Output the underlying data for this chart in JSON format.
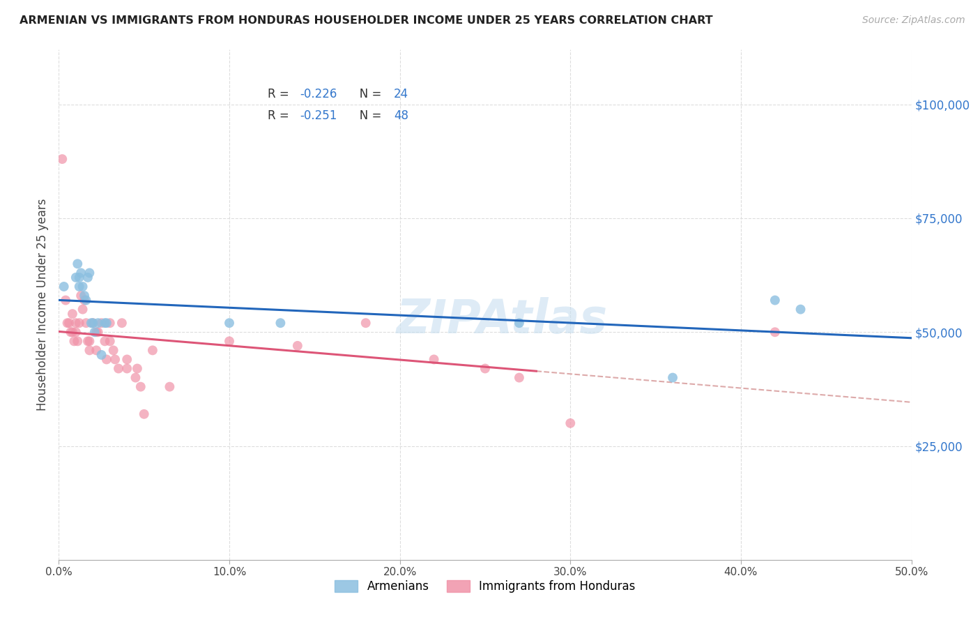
{
  "title": "ARMENIAN VS IMMIGRANTS FROM HONDURAS HOUSEHOLDER INCOME UNDER 25 YEARS CORRELATION CHART",
  "source": "Source: ZipAtlas.com",
  "ylabel": "Householder Income Under 25 years",
  "ytick_values": [
    25000,
    50000,
    75000,
    100000
  ],
  "xtick_values": [
    0.0,
    0.1,
    0.2,
    0.3,
    0.4,
    0.5
  ],
  "xtick_labels": [
    "0.0%",
    "10.0%",
    "20.0%",
    "30.0%",
    "40.0%",
    "50.0%"
  ],
  "xlim": [
    0.0,
    0.5
  ],
  "ylim": [
    0,
    112000
  ],
  "armenian_color": "#8bbfe0",
  "honduras_color": "#f093a8",
  "regression_armenian_color": "#2266bb",
  "regression_honduras_color": "#dd5577",
  "regression_dashed_color": "#ddaaaa",
  "watermark": "ZIPAtlas",
  "watermark_color": "#c8dff0",
  "legend_label_armenians": "Armenians",
  "legend_label_honduras": "Immigrants from Honduras",
  "armenian_R": "-0.226",
  "armenian_N": "24",
  "honduras_R": "-0.251",
  "honduras_N": "48",
  "armenian_x": [
    0.003,
    0.01,
    0.011,
    0.012,
    0.012,
    0.013,
    0.014,
    0.015,
    0.016,
    0.017,
    0.018,
    0.019,
    0.02,
    0.021,
    0.023,
    0.025,
    0.027,
    0.028,
    0.1,
    0.13,
    0.27,
    0.36,
    0.42,
    0.435
  ],
  "armenian_y": [
    60000,
    62000,
    65000,
    62000,
    60000,
    63000,
    60000,
    58000,
    57000,
    62000,
    63000,
    52000,
    52000,
    50000,
    52000,
    45000,
    52000,
    52000,
    52000,
    52000,
    52000,
    40000,
    57000,
    55000
  ],
  "honduras_x": [
    0.002,
    0.004,
    0.005,
    0.006,
    0.007,
    0.008,
    0.008,
    0.009,
    0.01,
    0.01,
    0.011,
    0.012,
    0.013,
    0.014,
    0.015,
    0.016,
    0.017,
    0.018,
    0.018,
    0.02,
    0.022,
    0.022,
    0.023,
    0.025,
    0.027,
    0.028,
    0.03,
    0.03,
    0.032,
    0.033,
    0.035,
    0.037,
    0.04,
    0.04,
    0.045,
    0.046,
    0.048,
    0.05,
    0.055,
    0.065,
    0.1,
    0.14,
    0.18,
    0.22,
    0.25,
    0.27,
    0.3,
    0.42
  ],
  "honduras_y": [
    88000,
    57000,
    52000,
    52000,
    50000,
    54000,
    50000,
    48000,
    52000,
    50000,
    48000,
    52000,
    58000,
    55000,
    57000,
    52000,
    48000,
    46000,
    48000,
    52000,
    50000,
    46000,
    50000,
    52000,
    48000,
    44000,
    48000,
    52000,
    46000,
    44000,
    42000,
    52000,
    44000,
    42000,
    40000,
    42000,
    38000,
    32000,
    46000,
    38000,
    48000,
    47000,
    52000,
    44000,
    42000,
    40000,
    30000,
    50000
  ],
  "background_color": "#ffffff",
  "grid_color": "#dddddd",
  "yticklabel_color": "#3377cc",
  "axis_label_color": "#444444"
}
